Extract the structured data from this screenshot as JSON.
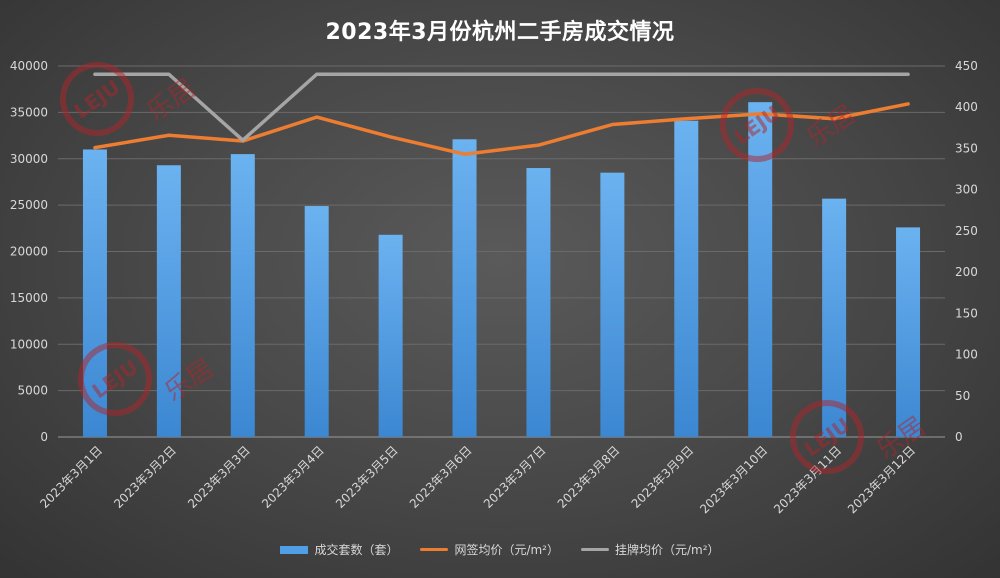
{
  "chart_data": {
    "type": "bar",
    "title": "2023年3月份杭州二手房成交情况",
    "categories": [
      "2023年3月1日",
      "2023年3月2日",
      "2023年3月3日",
      "2023年3月4日",
      "2023年3月5日",
      "2023年3月6日",
      "2023年3月7日",
      "2023年3月8日",
      "2023年3月9日",
      "2023年3月10日",
      "2023年3月11日",
      "2023年3月12日"
    ],
    "series": [
      {
        "name": "成交套数（套）",
        "type": "bar",
        "axis": "left",
        "color": "#4f9ee6",
        "values": [
          31000,
          29300,
          30500,
          24900,
          21800,
          32100,
          29000,
          28500,
          34100,
          36100,
          25700,
          22600
        ]
      },
      {
        "name": "网签均价（元/m²）",
        "type": "line",
        "axis": "right",
        "color": "#ed7d31",
        "values": [
          351,
          366,
          359,
          388,
          364,
          343,
          354,
          379,
          386,
          392,
          386,
          404
        ]
      },
      {
        "name": "挂牌均价（元/m²）",
        "type": "line",
        "axis": "right",
        "color": "#a5a5a5",
        "values": [
          440,
          440,
          360,
          440,
          440,
          440,
          440,
          440,
          440,
          440,
          440,
          440
        ]
      }
    ],
    "y_left": {
      "min": 0,
      "max": 40000,
      "ticks": [
        "0",
        "5000",
        "10000",
        "15000",
        "20000",
        "25000",
        "30000",
        "35000",
        "40000"
      ]
    },
    "y_right": {
      "min": 0,
      "max": 450,
      "ticks": [
        "0",
        "50",
        "100",
        "150",
        "200",
        "250",
        "300",
        "350",
        "400",
        "450"
      ]
    },
    "grid": true,
    "legend_position": "bottom"
  },
  "watermark_text": "LEJU 乐居"
}
